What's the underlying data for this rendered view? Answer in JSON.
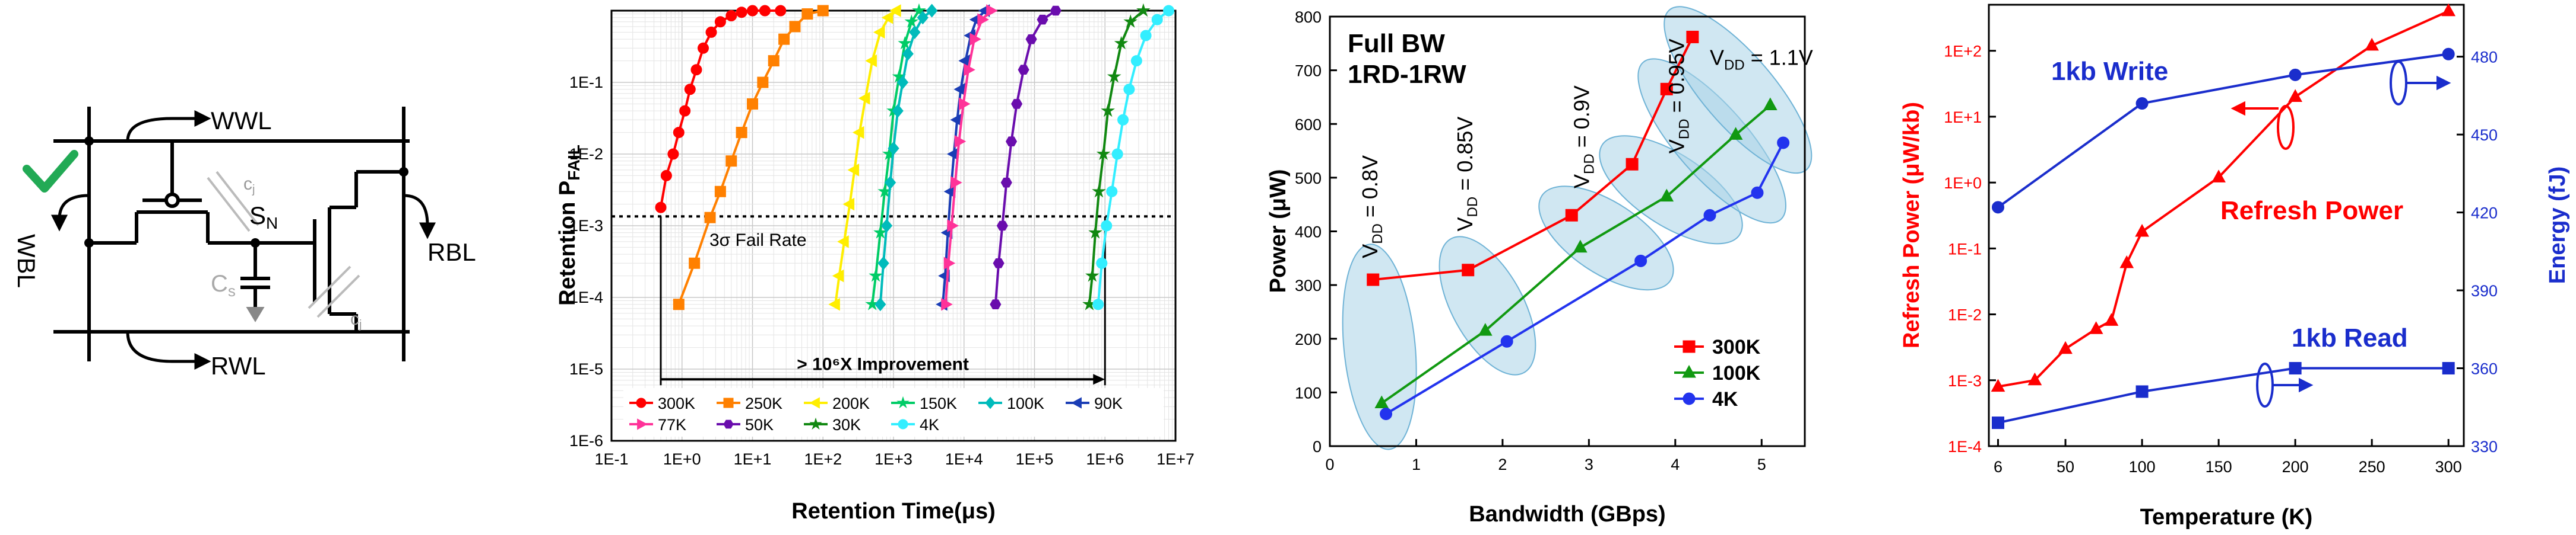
{
  "circuit": {
    "wwl": "WWL",
    "wbl": "WBL",
    "rbl": "RBL",
    "rwl": "RWL",
    "sn": "S",
    "sn_sub": "N",
    "cj_top": "c",
    "cj_top_sub": "j",
    "cj_bot": "c",
    "cj_bot_sub": "j",
    "cs": "C",
    "cs_sub": "s",
    "check_color": "#22aa55"
  },
  "chart_data": [
    {
      "type": "line",
      "xlabel": "Retention Time(μs)",
      "ylabel_main": "Retention P",
      "ylabel_sub": "FAIL",
      "x_scale": "log",
      "y_scale": "log",
      "x_ticks": [
        "1E-1",
        "1E+0",
        "1E+1",
        "1E+2",
        "1E+3",
        "1E+4",
        "1E+5",
        "1E+6",
        "1E+7"
      ],
      "y_ticks": [
        "1E-6",
        "1E-5",
        "1E-4",
        "1E-3",
        "1E-2",
        "1E-1"
      ],
      "xlim": [
        0.1,
        10000000
      ],
      "ylim": [
        1e-06,
        1
      ],
      "fail_rate_level": 0.00135,
      "fail_rate_label": "3σ Fail Rate",
      "improvement_label": "> 10⁶X Improvement",
      "improvement_range": [
        0.5,
        1000000
      ],
      "series": [
        {
          "name": "300K",
          "color": "#ff0000",
          "marker": "circle",
          "x": [
            0.5,
            0.6,
            0.75,
            0.9,
            1.1,
            1.3,
            1.6,
            2.0,
            2.6,
            3.5,
            5,
            7,
            10,
            15,
            25
          ],
          "y": [
            0.0018,
            0.005,
            0.01,
            0.02,
            0.04,
            0.08,
            0.15,
            0.3,
            0.5,
            0.7,
            0.85,
            0.95,
            1,
            1,
            1
          ]
        },
        {
          "name": "250K",
          "color": "#ff8000",
          "marker": "square",
          "x": [
            0.9,
            1.5,
            2.5,
            3.5,
            5,
            7,
            10,
            14,
            20,
            28,
            40,
            60,
            100
          ],
          "y": [
            8e-05,
            0.0003,
            0.0013,
            0.003,
            0.008,
            0.02,
            0.05,
            0.1,
            0.2,
            0.4,
            0.6,
            0.9,
            1
          ]
        },
        {
          "name": "200K",
          "color": "#ffee00",
          "marker": "triangle-left",
          "x": [
            150,
            170,
            200,
            240,
            280,
            330,
            400,
            500,
            650,
            850,
            1100
          ],
          "y": [
            8e-05,
            0.0002,
            0.0006,
            0.002,
            0.006,
            0.02,
            0.06,
            0.2,
            0.5,
            0.8,
            1
          ]
        },
        {
          "name": "150K",
          "color": "#00cc66",
          "marker": "star",
          "x": [
            500,
            560,
            650,
            750,
            870,
            1000,
            1200,
            1450,
            1800,
            2300
          ],
          "y": [
            8e-05,
            0.0002,
            0.0008,
            0.003,
            0.01,
            0.04,
            0.12,
            0.35,
            0.7,
            1
          ]
        },
        {
          "name": "100K",
          "color": "#00bbbb",
          "marker": "diamond",
          "x": [
            650,
            720,
            800,
            900,
            1000,
            1150,
            1350,
            1600,
            2000,
            2600,
            3500
          ],
          "y": [
            8e-05,
            0.0003,
            0.001,
            0.004,
            0.012,
            0.04,
            0.1,
            0.25,
            0.5,
            0.8,
            1
          ]
        },
        {
          "name": "90K",
          "color": "#1a3db5",
          "marker": "triangle-left",
          "x": [
            5000,
            5400,
            5900,
            6500,
            7200,
            8000,
            9000,
            10500,
            12500,
            15000,
            20000
          ],
          "y": [
            8e-05,
            0.0002,
            0.0008,
            0.003,
            0.01,
            0.03,
            0.08,
            0.2,
            0.45,
            0.75,
            1
          ]
        },
        {
          "name": "77K",
          "color": "#ff3399",
          "marker": "triangle-right",
          "x": [
            5500,
            6000,
            6700,
            7500,
            8500,
            9800,
            11500,
            14000,
            18000,
            24000
          ],
          "y": [
            8e-05,
            0.0003,
            0.001,
            0.004,
            0.015,
            0.05,
            0.15,
            0.4,
            0.75,
            1
          ]
        },
        {
          "name": "50K",
          "color": "#6a0dad",
          "marker": "hexagon",
          "x": [
            28000,
            31000,
            35000,
            40000,
            47000,
            56000,
            70000,
            90000,
            130000,
            200000
          ],
          "y": [
            8e-05,
            0.0003,
            0.001,
            0.004,
            0.015,
            0.05,
            0.15,
            0.4,
            0.75,
            1
          ]
        },
        {
          "name": "30K",
          "color": "#118811",
          "marker": "star",
          "x": [
            600000,
            660000,
            730000,
            820000,
            950000,
            1100000,
            1350000,
            1700000,
            2300000,
            3500000
          ],
          "y": [
            8e-05,
            0.0002,
            0.0008,
            0.003,
            0.01,
            0.04,
            0.12,
            0.35,
            0.7,
            1
          ]
        },
        {
          "name": "4K",
          "color": "#33eeff",
          "marker": "circle",
          "x": [
            800000,
            900000,
            1050000,
            1250000,
            1500000,
            1800000,
            2200000,
            2800000,
            3800000,
            5500000,
            8000000
          ],
          "y": [
            8e-05,
            0.0003,
            0.001,
            0.003,
            0.01,
            0.03,
            0.08,
            0.2,
            0.45,
            0.75,
            1
          ]
        }
      ],
      "legend_placement": "bottom"
    },
    {
      "type": "line",
      "title_line1": "Full BW",
      "title_line2": "1RD-1RW",
      "xlabel": "Bandwidth (GBps)",
      "ylabel": "Power (μW)",
      "xlim": [
        0,
        5.5
      ],
      "ylim": [
        0,
        800
      ],
      "x_ticks": [
        0,
        1,
        2,
        3,
        4,
        5
      ],
      "y_ticks": [
        0,
        100,
        200,
        300,
        400,
        500,
        600,
        700,
        800
      ],
      "series": [
        {
          "name": "300K",
          "color": "#ff0000",
          "marker": "square",
          "x": [
            0.5,
            1.6,
            2.8,
            3.5,
            3.9,
            4.2
          ],
          "y": [
            310,
            328,
            430,
            525,
            665,
            762
          ]
        },
        {
          "name": "100K",
          "color": "#119911",
          "marker": "triangle",
          "x": [
            0.6,
            1.8,
            2.9,
            3.9,
            4.7,
            5.1
          ],
          "y": [
            80,
            215,
            370,
            465,
            580,
            635
          ]
        },
        {
          "name": "4K",
          "color": "#2233ee",
          "marker": "circle",
          "x": [
            0.65,
            2.05,
            3.6,
            4.4,
            4.95,
            5.25
          ],
          "y": [
            60,
            195,
            345,
            430,
            472,
            565
          ]
        }
      ],
      "vdd_labels": [
        {
          "main": "V",
          "sub": "DD",
          "rest": " = 0.8V",
          "x": 0.55,
          "y": 350
        },
        {
          "main": "V",
          "sub": "DD",
          "rest": " = 0.85V",
          "x": 1.65,
          "y": 400
        },
        {
          "main": "V",
          "sub": "DD",
          "rest": " = 0.9V",
          "x": 3.0,
          "y": 480
        },
        {
          "main": "V",
          "sub": "DD",
          "rest": " = 0.95V",
          "x": 4.1,
          "y": 545
        },
        {
          "main": "V",
          "sub": "DD",
          "rest": " = 1.1V",
          "x": 4.4,
          "y": 710
        }
      ],
      "legend_placement": "bottom-right"
    },
    {
      "type": "line",
      "xlabel": "Temperature (K)",
      "ylabel_left": "Refresh Power (μW/kb)",
      "ylabel_right": "Energy (fJ)",
      "x_ticks": [
        "6",
        "50",
        "100",
        "150",
        "200",
        "250",
        "300"
      ],
      "x_tick_values": [
        6,
        50,
        100,
        150,
        200,
        250,
        300
      ],
      "xlim": [
        0,
        310
      ],
      "y_left_ticks": [
        "1E-4",
        "1E-3",
        "1E-2",
        "1E-1",
        "1E+0",
        "1E+1",
        "1E+2"
      ],
      "y_left_lim": [
        0.0001,
        500
      ],
      "y_right_ticks": [
        "330",
        "360",
        "390",
        "420",
        "450",
        "480"
      ],
      "y_right_lim": [
        330,
        500
      ],
      "label_write": "1kb Write",
      "label_read": "1kb Read",
      "label_refresh": "Refresh Power",
      "series": [
        {
          "name": "Refresh Power",
          "axis": "left",
          "color": "#ff0000",
          "marker": "triangle",
          "x": [
            6,
            30,
            50,
            70,
            80,
            90,
            100,
            150,
            200,
            250,
            300
          ],
          "y": [
            0.0008,
            0.001,
            0.003,
            0.006,
            0.008,
            0.06,
            0.18,
            1.2,
            20,
            120,
            400
          ]
        },
        {
          "name": "1kb Write",
          "axis": "right",
          "color": "#1a2dcc",
          "marker": "circle",
          "x": [
            6,
            100,
            200,
            300
          ],
          "y": [
            422,
            462,
            473,
            481
          ]
        },
        {
          "name": "1kb Read",
          "axis": "right",
          "color": "#1a2dcc",
          "marker": "square",
          "x": [
            6,
            100,
            200,
            300
          ],
          "y": [
            339,
            351,
            360,
            360
          ]
        }
      ],
      "left_axis_color": "#ff0000",
      "right_axis_color": "#1a2dcc"
    }
  ]
}
